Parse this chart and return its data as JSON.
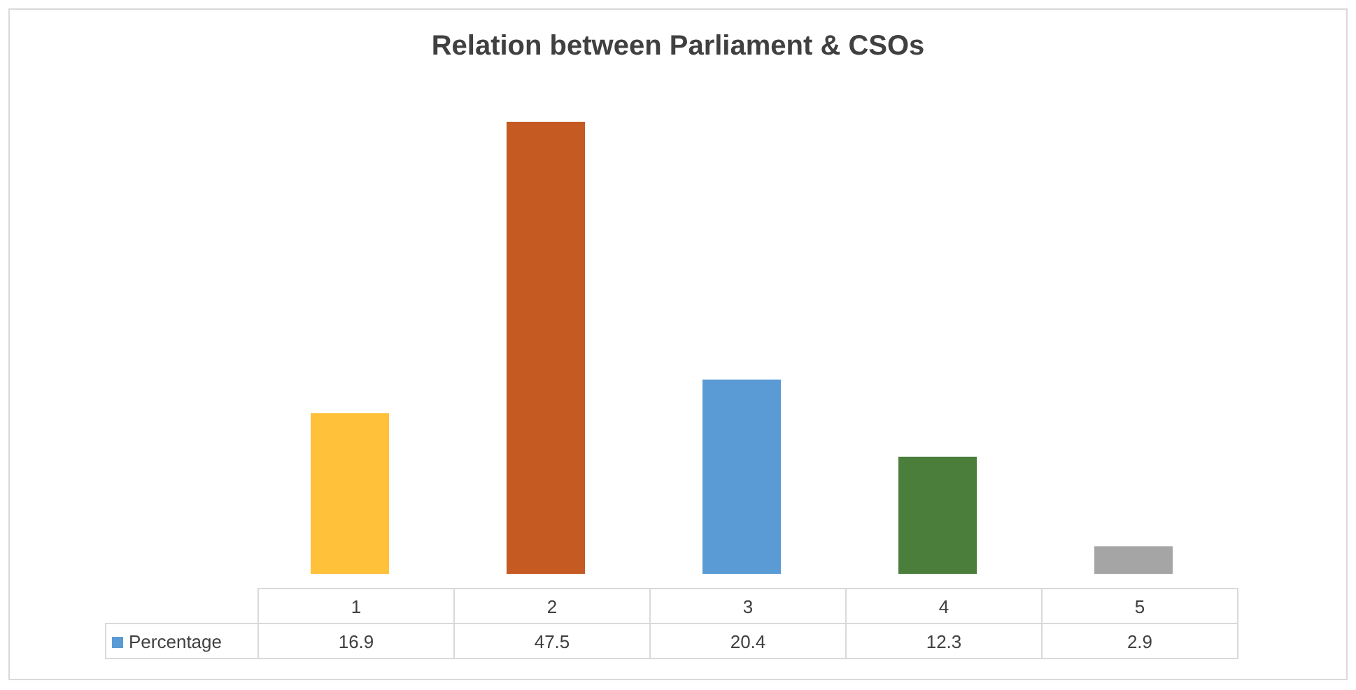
{
  "chart_data": {
    "type": "bar",
    "title": "Relation between Parliament & CSOs",
    "categories": [
      "1",
      "2",
      "3",
      "4",
      "5"
    ],
    "series": [
      {
        "name": "Percentage",
        "color": "#5b9bd5",
        "colors": [
          "#ffc03a",
          "#c55a22",
          "#5b9bd5",
          "#4a7e3a",
          "#a5a5a5"
        ],
        "values": [
          16.9,
          47.5,
          20.4,
          12.3,
          2.9
        ]
      }
    ],
    "data_labels": true
  }
}
